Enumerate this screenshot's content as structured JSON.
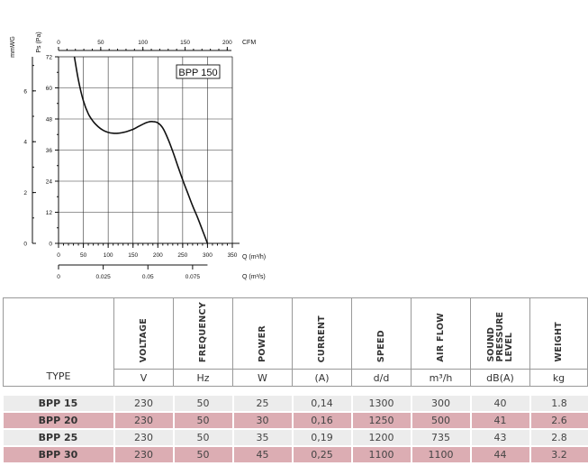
{
  "chart_data": {
    "type": "line",
    "legend_box": "BPP 150",
    "y_left_label": "mmWG",
    "y_right_label": "Ps (Pa)",
    "x_top_label": "CFM",
    "x_m3h_label": "Q (m³/h)",
    "x_m3s_label": "Q (m³/s)",
    "ylim_pa": [
      0,
      72
    ],
    "xlim_m3h": [
      0,
      350
    ],
    "pa_ticks": [
      "0",
      "12",
      "24",
      "36",
      "48",
      "60",
      "72"
    ],
    "mmwg_ticks": [
      "0",
      "2",
      "4",
      "6"
    ],
    "cfm_ticks": [
      "0",
      "50",
      "100",
      "150",
      "200"
    ],
    "m3h_ticks": [
      "0",
      "50",
      "100",
      "150",
      "200",
      "250",
      "300",
      "350"
    ],
    "m3s_ticks": [
      "0",
      "0.025",
      "0.05",
      "0.075"
    ],
    "series": [
      {
        "x": [
          32,
          40,
          50,
          60,
          70,
          80,
          90,
          100,
          110,
          120,
          130,
          140,
          150,
          160,
          170,
          180,
          190,
          200,
          210,
          220,
          230,
          240,
          250,
          260,
          270,
          280,
          290,
          300
        ],
        "y": [
          72,
          63,
          55,
          50,
          47,
          45,
          43.6,
          42.8,
          42.5,
          42.5,
          42.8,
          43.3,
          44,
          45,
          46,
          46.8,
          47,
          46.5,
          44.5,
          40.5,
          35.5,
          30,
          24.5,
          19.5,
          14.5,
          10,
          5,
          0
        ]
      }
    ]
  },
  "table": {
    "headers": {
      "type": "TYPE",
      "voltage": "VOLTAGE",
      "frequency": "FREQUENCY",
      "power": "POWER",
      "current": "CURRENT",
      "speed": "SPEED",
      "airflow": "AIR FLOW",
      "spl1": "SOUND",
      "spl2": "PRESSURE",
      "spl3": "LEVEL",
      "weight": "WEIGHT"
    },
    "units": {
      "voltage": "V",
      "frequency": "Hz",
      "power": "W",
      "current": "(A)",
      "speed": "d/d",
      "airflow": "m³/h",
      "spl": "dB(A)",
      "weight": "kg"
    },
    "rows": [
      {
        "type": "BPP 15",
        "voltage": "230",
        "frequency": "50",
        "power": "25",
        "current": "0,14",
        "speed": "1300",
        "airflow": "300",
        "spl": "40",
        "weight": "1.8"
      },
      {
        "type": "BPP 20",
        "voltage": "230",
        "frequency": "50",
        "power": "30",
        "current": "0,16",
        "speed": "1250",
        "airflow": "500",
        "spl": "41",
        "weight": "2.6"
      },
      {
        "type": "BPP 25",
        "voltage": "230",
        "frequency": "50",
        "power": "35",
        "current": "0,19",
        "speed": "1200",
        "airflow": "735",
        "spl": "43",
        "weight": "2.8"
      },
      {
        "type": "BPP 30",
        "voltage": "230",
        "frequency": "50",
        "power": "45",
        "current": "0,25",
        "speed": "1100",
        "airflow": "1100",
        "spl": "44",
        "weight": "3.2"
      }
    ]
  }
}
